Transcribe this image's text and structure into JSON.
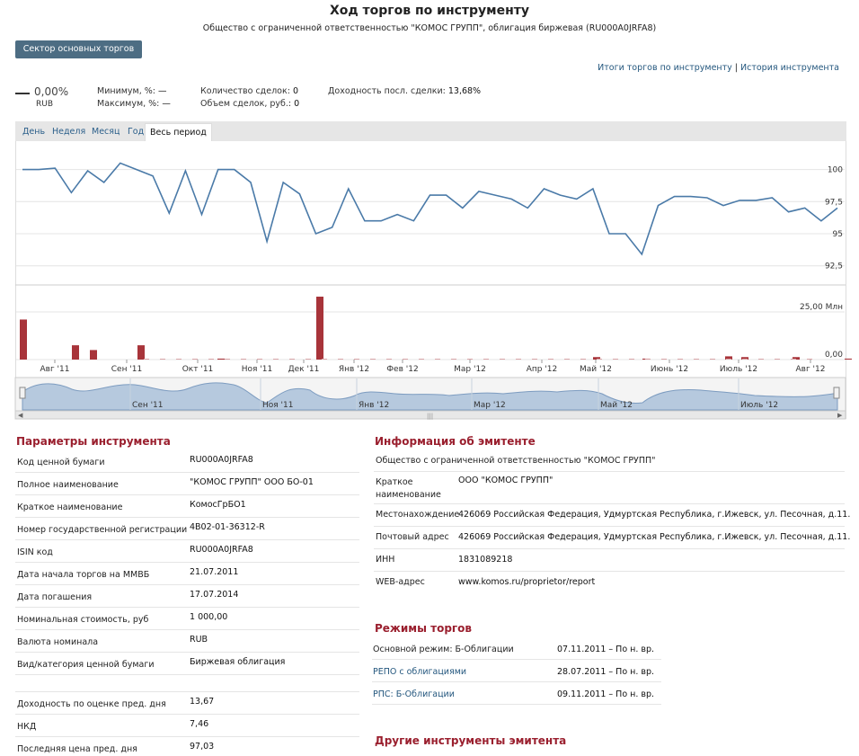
{
  "header": {
    "title": "Ход торгов по инструменту",
    "subtitle": "Общество с ограниченной ответственностью \"КОМОС ГРУПП\", облигация биржевая (RU000A0JRFA8)"
  },
  "sector_button": "Сектор основных торгов",
  "top_links": {
    "results": "Итоги торгов по инструменту",
    "separator": "|",
    "history": "История инструмента"
  },
  "summary": {
    "change": "0,00%",
    "currency": "RUB",
    "min_label": "Минимум, %:",
    "min_value": "—",
    "max_label": "Максимум, %:",
    "max_value": "—",
    "deals_label": "Количество сделок:",
    "deals_value": "0",
    "volume_label": "Объем сделок, руб.:",
    "volume_value": "0",
    "yield_label": "Доходность посл. сделки:",
    "yield_value": "13,68%"
  },
  "periods": [
    "День",
    "Неделя",
    "Месяц",
    "Год",
    "Весь период"
  ],
  "active_period": "Весь период",
  "chart_data": [
    {
      "type": "line",
      "series": [
        {
          "values": [
            100,
            100,
            100.1,
            98.2,
            99.9,
            99,
            100.5,
            100,
            99.5,
            96.6,
            99.9,
            96.5,
            100,
            100,
            99,
            94.4,
            99,
            98.1,
            95,
            95.5,
            98.5,
            96,
            96,
            96.5,
            96,
            98,
            98,
            97,
            98.3,
            98,
            97.7,
            97,
            98.5,
            98,
            97.7,
            98.5,
            95,
            95,
            93.4,
            97.2,
            97.9,
            97.9,
            97.8,
            97.2,
            97.6,
            97.6,
            97.8,
            96.7,
            97,
            96,
            97
          ]
        }
      ],
      "y_ticks": [
        "100",
        "97,5",
        "95",
        "92,5"
      ],
      "ylim": [
        91.5,
        102
      ],
      "grid": true
    },
    {
      "type": "bar",
      "series": [
        {
          "values": [
            [
              0,
              21
            ],
            [
              58,
              7.5
            ],
            [
              78,
              5
            ],
            [
              131,
              7.5
            ],
            [
              220,
              0.5
            ],
            [
              330,
              33
            ],
            [
              638,
              1.3
            ],
            [
              693,
              0.5
            ],
            [
              785,
              1.7
            ],
            [
              803,
              1.3
            ],
            [
              860,
              1.3
            ],
            [
              918,
              0.5
            ]
          ]
        }
      ],
      "y_ticks": [
        "25,00 Млн",
        "0,00"
      ],
      "x_ticks": [
        "Авг '11",
        "Сен '11",
        "Окт '11",
        "Ноя '11",
        "Дек '11",
        "Янв '12",
        "Фев '12",
        "Мар '12",
        "Апр '12",
        "Май '12",
        "Июнь '12",
        "Июль '12",
        "Авг '12"
      ]
    }
  ],
  "navigator_ticks": [
    "Сен '11",
    "Ноя '11",
    "Янв '12",
    "Мар '12",
    "Май '12",
    "Июль '12"
  ],
  "params": {
    "title": "Параметры инструмента",
    "rows": [
      {
        "k": "Код ценной бумаги",
        "v": "RU000A0JRFA8"
      },
      {
        "k": "Полное наименование",
        "v": "\"КОМОС ГРУПП\" ООО БО-01"
      },
      {
        "k": "Краткое наименование",
        "v": "КомосГрБО1"
      },
      {
        "k": "Номер государственной регистрации",
        "v": "4B02-01-36312-R"
      },
      {
        "k": "ISIN код",
        "v": "RU000A0JRFA8"
      },
      {
        "k": "Дата начала торгов на ММВБ",
        "v": "21.07.2011"
      },
      {
        "k": "Дата погашения",
        "v": "17.07.2014"
      },
      {
        "k": "Номинальная стоимость, руб",
        "v": "1 000,00"
      },
      {
        "k": "Валюта номинала",
        "v": "RUB"
      },
      {
        "k": "Вид/категория ценной бумаги",
        "v": "Биржевая облигация"
      },
      {
        "k": "",
        "v": ""
      },
      {
        "k": "Доходность по оценке пред. дня",
        "v": "13,67"
      },
      {
        "k": "НКД",
        "v": "7,46"
      },
      {
        "k": "Последняя цена пред. дня",
        "v": "97,03"
      }
    ]
  },
  "issuer": {
    "title": "Информация об эмитенте",
    "full_name": "Общество с ограниченной ответственностью \"КОМОС ГРУПП\"",
    "short_label_1": "Краткое",
    "short_label_2": "наименование",
    "short_value": "ООО \"КОМОС ГРУПП\"",
    "location_label": "Местонахождение",
    "location_value": "426069 Российская Федерация, Удмуртская Республика, г.Ижевск, ул. Песочная, д.11.",
    "postal_label": "Почтовый адрес",
    "postal_value": "426069 Российская Федерация, Удмуртская Республика, г.Ижевск, ул. Песочная, д.11.",
    "inn_label": "ИНН",
    "inn_value": "1831089218",
    "web_label": "WEB-адрес",
    "web_value": "www.komos.ru/proprietor/report"
  },
  "modes": {
    "title": "Режимы торгов",
    "rows": [
      {
        "k": "Основной режим: Б-Облигации",
        "v": "07.11.2011 – По н. вр.",
        "link": false
      },
      {
        "k": "РЕПО с облигациями",
        "v": "28.07.2011 – По н. вр.",
        "link": true
      },
      {
        "k": "РПС: Б-Облигации",
        "v": "09.11.2011 – По н. вр.",
        "link": true
      }
    ]
  },
  "other_title": "Другие инструменты эмитента"
}
